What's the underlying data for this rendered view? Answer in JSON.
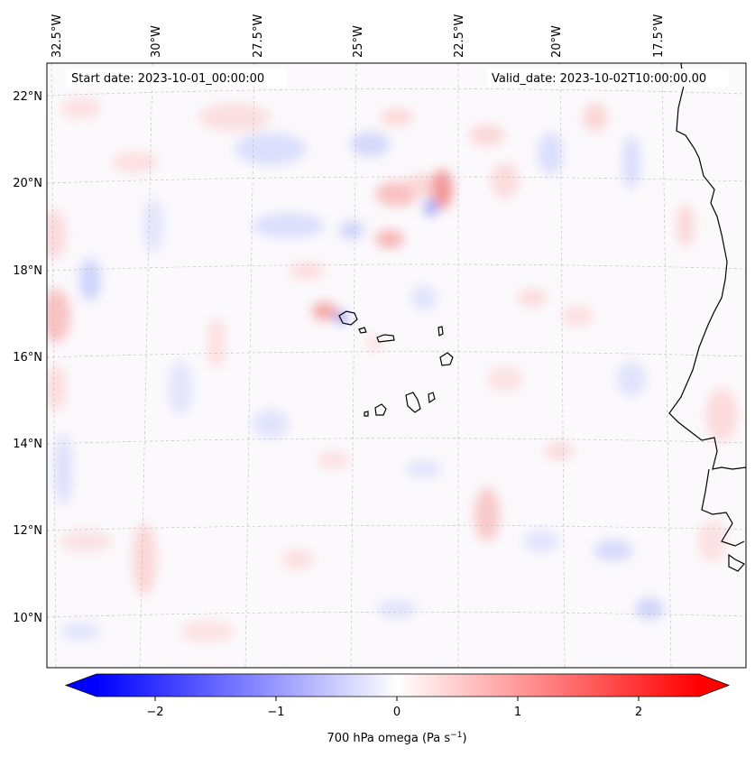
{
  "map": {
    "start_label": "Start date: 2023-10-01_00:00:00",
    "valid_label": "Valid_date: 2023-10-02T10:00:00.00",
    "projection": "Lambert conformal",
    "gridlines": true,
    "lon_ticks": [
      "32.5°W",
      "30°W",
      "27.5°W",
      "25°W",
      "22.5°W",
      "20°W",
      "17.5°W"
    ],
    "lat_ticks": [
      "22°N",
      "20°N",
      "18°N",
      "16°N",
      "14°N",
      "12°N",
      "10°N"
    ],
    "features": [
      "Cape Verde islands",
      "West African coastline"
    ]
  },
  "colorbar": {
    "label_main": "700 hPa omega (Pa s",
    "label_exp": "−1",
    "label_close": ")",
    "ticks": [
      "−2",
      "−1",
      "0",
      "1",
      "2"
    ],
    "range": [
      -2.75,
      2.75
    ],
    "extend": "both",
    "colormap": "bwr",
    "color_low": "#0000ff",
    "color_mid": "#ffffff",
    "color_high": "#ff0000"
  }
}
